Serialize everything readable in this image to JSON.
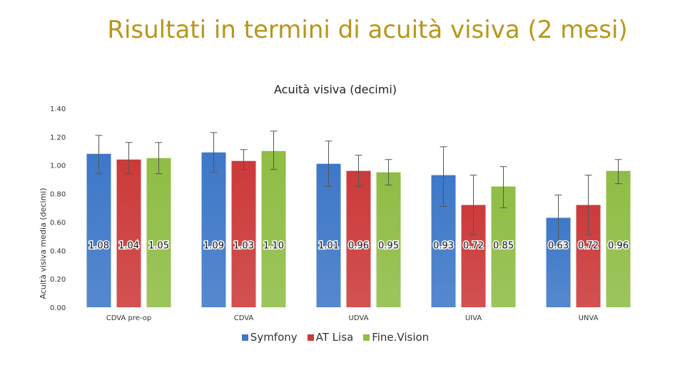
{
  "slide": {
    "title": "Risultati in termini di acuità visiva (2 mesi)"
  },
  "chart_data": {
    "type": "bar",
    "title": "Acuità visiva (decimi)",
    "xlabel": "",
    "ylabel": "Acuità visiva media (decimi)",
    "ylim": [
      0,
      1.4
    ],
    "yticks": [
      "0.00",
      "0.20",
      "0.40",
      "0.60",
      "0.80",
      "1.00",
      "1.20",
      "1.40"
    ],
    "categories": [
      "CDVA pre-op",
      "CDVA",
      "UDVA",
      "UIVA",
      "UNVA"
    ],
    "series": [
      {
        "name": "Symfony",
        "color": "#3e78c8",
        "values": [
          1.08,
          1.09,
          1.01,
          0.93,
          0.63
        ],
        "labels": [
          "1.08",
          "1.09",
          "1.01",
          "0.93",
          "0.63"
        ],
        "err_low": [
          0.94,
          0.95,
          0.85,
          0.71,
          0.46
        ],
        "err_high": [
          1.21,
          1.23,
          1.17,
          1.13,
          0.79
        ]
      },
      {
        "name": "AT Lisa",
        "color": "#cc3a3a",
        "values": [
          1.04,
          1.03,
          0.96,
          0.72,
          0.72
        ],
        "labels": [
          "1.04",
          "1.03",
          "0.96",
          "0.72",
          "0.72"
        ],
        "err_low": [
          0.94,
          0.97,
          0.85,
          0.51,
          0.51
        ],
        "err_high": [
          1.16,
          1.11,
          1.07,
          0.93,
          0.93
        ]
      },
      {
        "name": "Fine.Vision",
        "color": "#8fbd45",
        "values": [
          1.05,
          1.1,
          0.95,
          0.85,
          0.96
        ],
        "labels": [
          "1.05",
          "1.10",
          "0.95",
          "0.85",
          "0.96"
        ],
        "err_low": [
          0.94,
          0.97,
          0.86,
          0.7,
          0.87
        ],
        "err_high": [
          1.16,
          1.24,
          1.04,
          0.99,
          1.04
        ]
      }
    ],
    "grid": false,
    "legend": "bottom"
  }
}
